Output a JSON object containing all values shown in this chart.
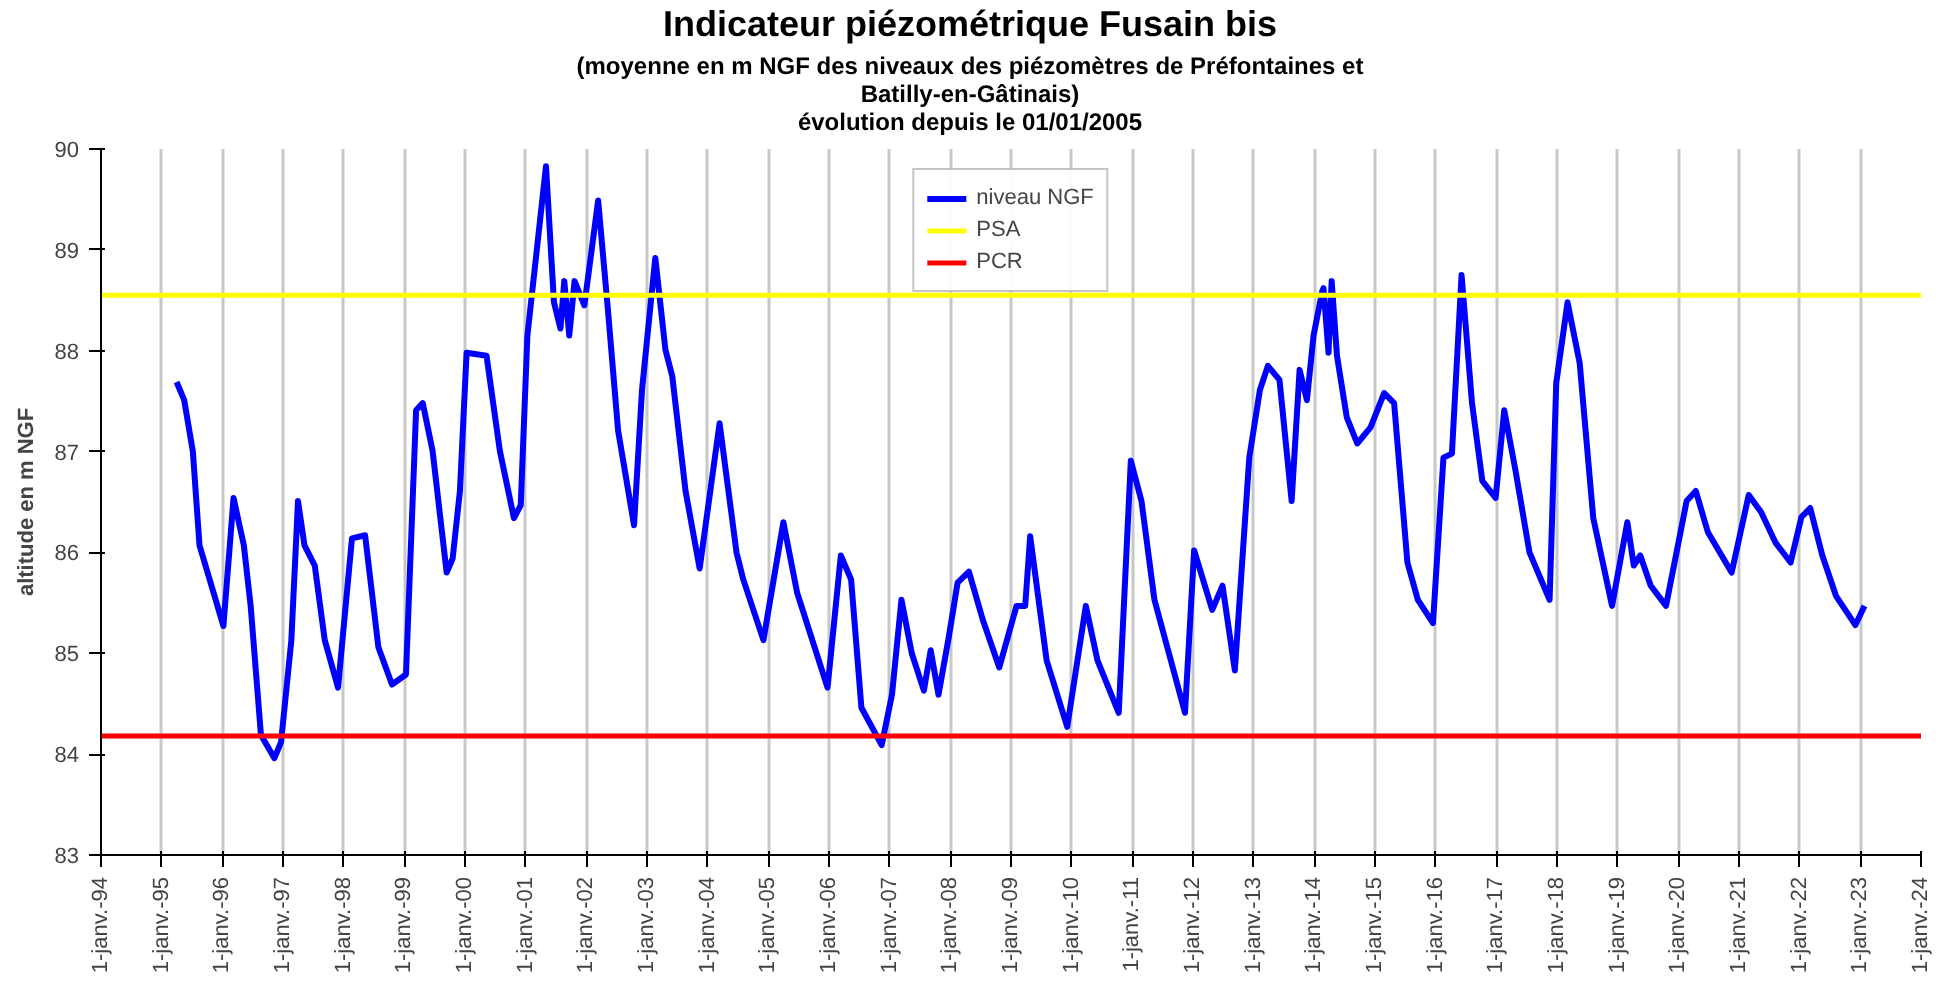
{
  "chart_data": {
    "type": "line",
    "title": "Indicateur piézométrique Fusain bis",
    "subtitle": "(moyenne en m NGF des niveaux des piézomètres de Préfontaines et\nBatilly-en-Gâtinais)\névolution depuis le 01/01/2005",
    "ylabel": "altitude en m NGF",
    "series": [
      {
        "name": "niveau NGF",
        "color": "#0000ff",
        "x": [
          "1995-04-01",
          "1995-05-17",
          "1995-07-08",
          "1995-08-17",
          "1995-11-10",
          "1996-01-08",
          "1996-03-09",
          "1996-05-10",
          "1996-06-20",
          "1996-08-21",
          "1996-11-10",
          "1996-12-20",
          "1997-02-20",
          "1997-04-01",
          "1997-05-10",
          "1997-07-11",
          "1997-09-09",
          "1997-11-28",
          "1998-02-20",
          "1998-05-10",
          "1998-07-29",
          "1998-10-19",
          "1999-01-11",
          "1999-03-13",
          "1999-04-22",
          "1999-06-20",
          "1999-09-13",
          "1999-10-19",
          "1999-12-02",
          "2000-01-11",
          "2000-05-10",
          "2000-07-29",
          "2000-10-22",
          "2000-12-02",
          "2001-01-11",
          "2001-05-03",
          "2001-06-20",
          "2001-07-29",
          "2001-08-21",
          "2001-09-20",
          "2001-10-22",
          "2001-12-20",
          "2002-03-13",
          "2002-05-10",
          "2002-07-11",
          "2002-10-15",
          "2002-12-02",
          "2003-02-20",
          "2003-04-22",
          "2003-06-02",
          "2003-08-21",
          "2003-11-14",
          "2004-03-13",
          "2004-06-23",
          "2004-08-03",
          "2004-12-02",
          "2005-04-01",
          "2005-06-23",
          "2005-12-23",
          "2006-03-13",
          "2006-05-14",
          "2006-07-15",
          "2006-11-14",
          "2007-01-15",
          "2007-03-13",
          "2007-05-14",
          "2007-07-26",
          "2007-09-05",
          "2007-10-22",
          "2007-12-23",
          "2008-02-14",
          "2008-04-22",
          "2008-07-15",
          "2008-10-22",
          "2009-02-03",
          "2009-03-27",
          "2009-04-26",
          "2009-08-03",
          "2009-12-05",
          "2010-03-27",
          "2010-06-05",
          "2010-10-11",
          "2010-12-23",
          "2011-02-25",
          "2011-05-14",
          "2011-11-14",
          "2012-01-08",
          "2012-04-26",
          "2012-06-27",
          "2012-09-09",
          "2012-12-05",
          "2013-02-07",
          "2013-03-27",
          "2013-06-05",
          "2013-08-17",
          "2013-10-04",
          "2013-11-17",
          "2013-12-27",
          "2014-02-17",
          "2014-02-25",
          "2014-03-27",
          "2014-04-15",
          "2014-05-17",
          "2014-07-15",
          "2014-09-16",
          "2014-12-05",
          "2015-02-25",
          "2015-04-26",
          "2015-07-15",
          "2015-09-16",
          "2015-12-16",
          "2016-02-17",
          "2016-04-08",
          "2016-06-05",
          "2016-08-07",
          "2016-10-08",
          "2016-12-27",
          "2017-02-17",
          "2017-04-26",
          "2017-07-19",
          "2017-11-17",
          "2017-12-27",
          "2018-03-05",
          "2018-05-17",
          "2018-08-07",
          "2018-11-28",
          "2019-02-28",
          "2019-04-08",
          "2019-05-17",
          "2019-07-19",
          "2019-10-19",
          "2020-02-20",
          "2020-04-15",
          "2020-06-27",
          "2020-11-17",
          "2021-02-28",
          "2021-05-13",
          "2021-08-07",
          "2021-11-07",
          "2022-01-11",
          "2022-03-05",
          "2022-05-17",
          "2022-08-07",
          "2022-12-02",
          "2023-01-26"
        ],
        "values": [
          87.69,
          87.51,
          87.0,
          86.07,
          85.6,
          85.27,
          86.54,
          86.07,
          85.47,
          84.19,
          83.96,
          84.12,
          85.13,
          86.51,
          86.07,
          85.87,
          85.13,
          84.66,
          86.14,
          86.17,
          85.06,
          84.69,
          84.79,
          87.41,
          87.48,
          87.01,
          85.8,
          85.94,
          86.61,
          87.98,
          87.95,
          87.01,
          86.34,
          86.47,
          88.15,
          89.83,
          88.48,
          88.22,
          88.69,
          88.15,
          88.69,
          88.45,
          89.49,
          88.42,
          87.21,
          86.27,
          87.61,
          88.92,
          88.01,
          87.75,
          86.61,
          85.84,
          87.28,
          86.0,
          85.73,
          85.13,
          86.3,
          85.6,
          84.66,
          85.97,
          85.73,
          84.46,
          84.09,
          84.59,
          85.53,
          85.0,
          84.63,
          85.03,
          84.59,
          85.16,
          85.7,
          85.81,
          85.33,
          84.86,
          85.47,
          85.47,
          86.16,
          84.93,
          84.27,
          85.47,
          84.93,
          84.41,
          86.91,
          86.51,
          85.53,
          84.41,
          86.02,
          85.43,
          85.67,
          84.83,
          86.94,
          87.61,
          87.85,
          87.71,
          86.51,
          87.81,
          87.51,
          88.15,
          88.59,
          88.62,
          87.98,
          88.69,
          87.95,
          87.34,
          87.08,
          87.24,
          87.58,
          87.48,
          85.9,
          85.53,
          85.3,
          86.94,
          86.98,
          88.75,
          87.48,
          86.71,
          86.54,
          87.41,
          86.81,
          86.0,
          85.53,
          87.68,
          88.48,
          87.88,
          86.34,
          85.47,
          86.3,
          85.87,
          85.97,
          85.67,
          85.47,
          86.51,
          86.61,
          86.2,
          85.8,
          86.57,
          86.4,
          86.1,
          85.9,
          86.35,
          86.44,
          85.97,
          85.57,
          85.28,
          85.47
        ]
      }
    ],
    "ref_lines": [
      {
        "axis": "y",
        "value": 88.55,
        "label": "PSA",
        "color": "#ffff00"
      },
      {
        "axis": "y",
        "value": 84.18,
        "label": "PCR",
        "color": "#ff0000"
      }
    ],
    "xlim": [
      "1994-01-01",
      "2024-01-01"
    ],
    "xticks": [
      {
        "value": "1994-01-01",
        "label": "1-janv.-94"
      },
      {
        "value": "1995-01-01",
        "label": "1-janv.-95"
      },
      {
        "value": "1996-01-01",
        "label": "1-janv.-96"
      },
      {
        "value": "1997-01-01",
        "label": "1-janv.-97"
      },
      {
        "value": "1998-01-01",
        "label": "1-janv.-98"
      },
      {
        "value": "1999-01-01",
        "label": "1-janv.-99"
      },
      {
        "value": "2000-01-01",
        "label": "1-janv.-00"
      },
      {
        "value": "2001-01-01",
        "label": "1-janv.-01"
      },
      {
        "value": "2002-01-01",
        "label": "1-janv.-02"
      },
      {
        "value": "2003-01-01",
        "label": "1-janv.-03"
      },
      {
        "value": "2004-01-01",
        "label": "1-janv.-04"
      },
      {
        "value": "2005-01-01",
        "label": "1-janv.-05"
      },
      {
        "value": "2006-01-01",
        "label": "1-janv.-06"
      },
      {
        "value": "2007-01-01",
        "label": "1-janv.-07"
      },
      {
        "value": "2008-01-01",
        "label": "1-janv.-08"
      },
      {
        "value": "2009-01-01",
        "label": "1-janv.-09"
      },
      {
        "value": "2010-01-01",
        "label": "1-janv.-10"
      },
      {
        "value": "2011-01-01",
        "label": "1-janv.-11"
      },
      {
        "value": "2012-01-01",
        "label": "1-janv.-12"
      },
      {
        "value": "2013-01-01",
        "label": "1-janv.-13"
      },
      {
        "value": "2014-01-01",
        "label": "1-janv.-14"
      },
      {
        "value": "2015-01-01",
        "label": "1-janv.-15"
      },
      {
        "value": "2016-01-01",
        "label": "1-janv.-16"
      },
      {
        "value": "2017-01-01",
        "label": "1-janv.-17"
      },
      {
        "value": "2018-01-01",
        "label": "1-janv.-18"
      },
      {
        "value": "2019-01-01",
        "label": "1-janv.-19"
      },
      {
        "value": "2020-01-01",
        "label": "1-janv.-20"
      },
      {
        "value": "2021-01-01",
        "label": "1-janv.-21"
      },
      {
        "value": "2022-01-01",
        "label": "1-janv.-22"
      },
      {
        "value": "2023-01-01",
        "label": "1-janv.-23"
      },
      {
        "value": "2024-01-01",
        "label": "1-janv.-24"
      }
    ],
    "ylim": [
      83,
      90
    ],
    "yticks": [
      83,
      84,
      85,
      86,
      87,
      88,
      89,
      90
    ],
    "grid": "x",
    "legend": "top center",
    "marker": "none",
    "line_style": "solid"
  }
}
